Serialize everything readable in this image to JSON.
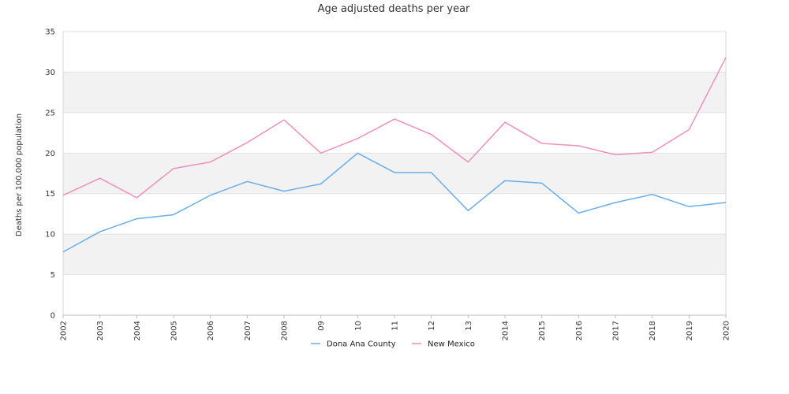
{
  "chart_data": {
    "type": "line",
    "title": "Age adjusted deaths per year",
    "xlabel": "",
    "ylabel": "Deaths per 100,000 population",
    "categories": [
      "2002",
      "2003",
      "2004",
      "2005",
      "2006",
      "2007",
      "2008",
      "09",
      "10",
      "11",
      "12",
      "13",
      "2014",
      "2015",
      "2016",
      "2017",
      "2018",
      "2019",
      "2020"
    ],
    "ylim": [
      0,
      35
    ],
    "yticks": [
      0,
      5,
      10,
      15,
      20,
      25,
      30,
      35
    ],
    "grid": true,
    "banded_background": true,
    "legend_position": "bottom-center",
    "series": [
      {
        "name": "Dona Ana County",
        "color": "#6aaee8",
        "values": [
          7.8,
          10.3,
          11.9,
          12.4,
          14.8,
          16.5,
          15.3,
          16.2,
          20.0,
          17.6,
          17.6,
          12.9,
          16.6,
          16.3,
          12.6,
          13.9,
          14.9,
          13.4,
          13.9
        ]
      },
      {
        "name": "New Mexico",
        "color": "#ee8fbc",
        "values": [
          14.8,
          16.9,
          14.5,
          18.1,
          18.9,
          21.3,
          24.1,
          20.0,
          21.8,
          24.2,
          22.3,
          18.9,
          23.8,
          21.2,
          20.9,
          19.8,
          20.1,
          22.9,
          31.8
        ]
      }
    ]
  }
}
